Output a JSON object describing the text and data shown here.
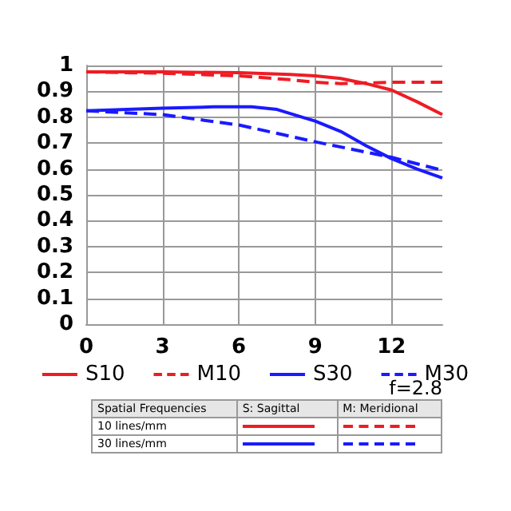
{
  "chart_data": {
    "type": "line",
    "xlim": [
      0,
      14
    ],
    "xticks": [
      0,
      3,
      6,
      9,
      12
    ],
    "ylim": [
      0,
      1
    ],
    "yticks": [
      0,
      0.1,
      0.2,
      0.3,
      0.4,
      0.5,
      0.6,
      0.7,
      0.8,
      0.9,
      1
    ],
    "grid": true,
    "legend": "bottom",
    "marker": "none",
    "series": [
      {
        "name": "S10",
        "color": "#ee1c24",
        "line_style": "solid",
        "x": [
          0,
          3,
          6,
          8,
          9,
          10,
          10.5,
          11,
          12,
          13,
          14
        ],
        "values": [
          0.975,
          0.975,
          0.972,
          0.965,
          0.96,
          0.95,
          0.94,
          0.93,
          0.905,
          0.86,
          0.81
        ]
      },
      {
        "name": "M10",
        "color": "#ee1c24",
        "line_style": "dashed",
        "x": [
          0,
          3,
          6,
          8,
          9,
          10,
          12,
          14
        ],
        "values": [
          0.975,
          0.97,
          0.96,
          0.945,
          0.935,
          0.93,
          0.935,
          0.935
        ]
      },
      {
        "name": "S30",
        "color": "#1a1aff",
        "line_style": "solid",
        "x": [
          0,
          3,
          5,
          6.5,
          7.5,
          8.5,
          9,
          10,
          11,
          12,
          13,
          14
        ],
        "values": [
          0.825,
          0.835,
          0.84,
          0.84,
          0.83,
          0.8,
          0.785,
          0.745,
          0.69,
          0.64,
          0.6,
          0.565
        ]
      },
      {
        "name": "M30",
        "color": "#1a1aff",
        "line_style": "dashed",
        "x": [
          0,
          3,
          6,
          9,
          12,
          14
        ],
        "values": [
          0.825,
          0.81,
          0.77,
          0.705,
          0.645,
          0.595
        ]
      }
    ],
    "annotations": [
      "f=2.8",
      "Spatial Frequencies",
      "S: Sagittal",
      "M: Meridional",
      "10 lines/mm",
      "30 lines/mm"
    ]
  }
}
